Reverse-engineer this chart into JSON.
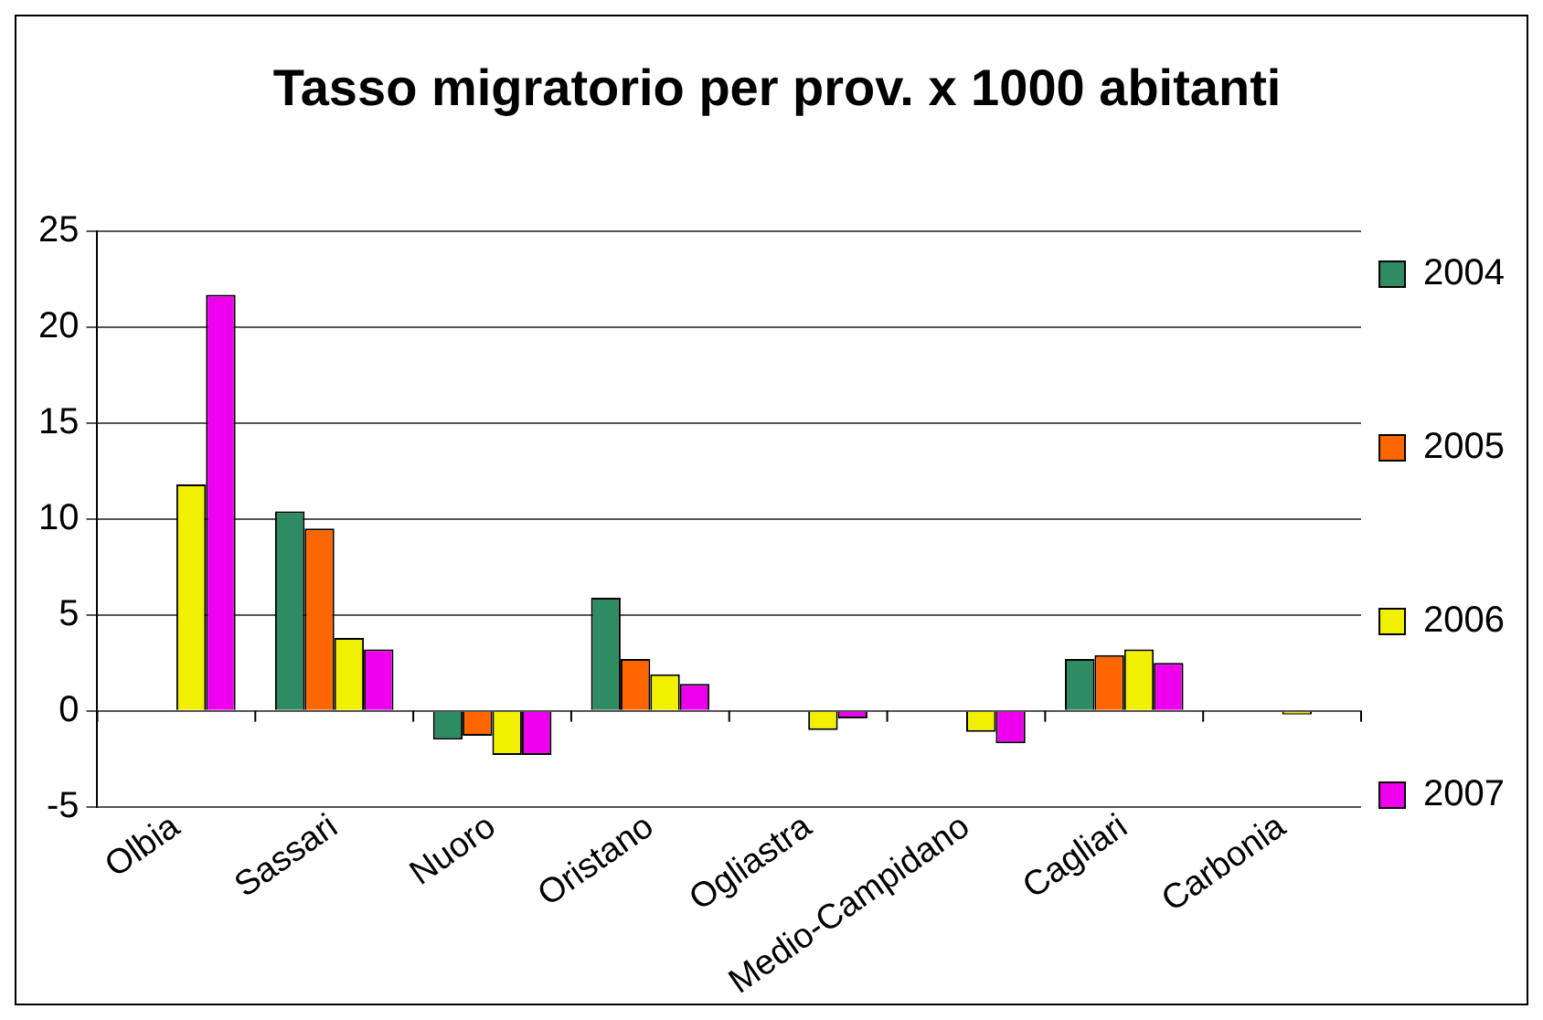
{
  "chart_data": {
    "type": "bar",
    "title": "Tasso migratorio per prov. x 1000 abitanti",
    "categories": [
      "Olbia",
      "Sassari",
      "Nuoro",
      "Oristano",
      "Ogliastra",
      "Medio-Campidano",
      "Cagliari",
      "Carbonia"
    ],
    "series": [
      {
        "name": "2004",
        "color": "#2e8b62",
        "values": [
          null,
          10.4,
          -1.5,
          5.9,
          null,
          null,
          2.7,
          null
        ]
      },
      {
        "name": "2005",
        "color": "#ff6600",
        "values": [
          null,
          9.5,
          -1.3,
          2.7,
          null,
          null,
          2.9,
          null
        ]
      },
      {
        "name": "2006",
        "color": "#f0f000",
        "values": [
          11.8,
          3.8,
          -2.3,
          1.9,
          -1.0,
          -1.1,
          3.2,
          -0.2
        ]
      },
      {
        "name": "2007",
        "color": "#ee00ee",
        "values": [
          21.7,
          3.2,
          -2.3,
          1.4,
          -0.4,
          -1.7,
          2.5,
          null
        ]
      }
    ],
    "ylim": [
      -5,
      25
    ],
    "yticks": [
      -5,
      0,
      5,
      10,
      15,
      20,
      25
    ],
    "grid": "y",
    "legend": "right"
  }
}
